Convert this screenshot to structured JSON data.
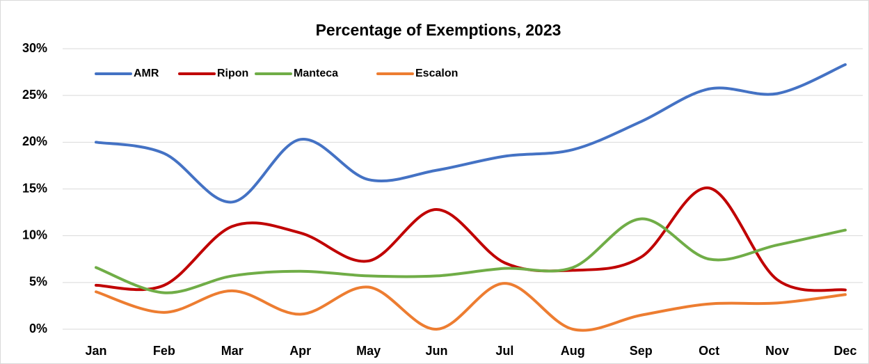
{
  "chart_data": {
    "type": "line",
    "title": "Percentage of Exemptions, 2023",
    "categories": [
      "Jan",
      "Feb",
      "Mar",
      "Apr",
      "May",
      "Jun",
      "Jul",
      "Aug",
      "Sep",
      "Oct",
      "Nov",
      "Dec"
    ],
    "series": [
      {
        "name": "AMR",
        "color": "#4472c4",
        "values": [
          20,
          18.8,
          13.6,
          20.3,
          16,
          17,
          18.5,
          19.2,
          22.2,
          25.7,
          25.2,
          28.3
        ]
      },
      {
        "name": "Ripon",
        "color": "#c00000",
        "values": [
          4.7,
          4.7,
          11,
          10.3,
          7.3,
          12.8,
          7.1,
          6.3,
          7.7,
          15.1,
          5.3,
          4.2
        ]
      },
      {
        "name": "Manteca",
        "color": "#70ad47",
        "values": [
          6.6,
          3.9,
          5.7,
          6.2,
          5.7,
          5.7,
          6.5,
          6.6,
          11.8,
          7.5,
          9,
          10.6
        ]
      },
      {
        "name": "Escalon",
        "color": "#ed7d31",
        "values": [
          4,
          1.8,
          4.1,
          1.6,
          4.5,
          0,
          4.9,
          0,
          1.5,
          2.7,
          2.8,
          3.7
        ]
      }
    ],
    "ylim": [
      0,
      30
    ],
    "yticks": [
      {
        "value": 0,
        "label": "0%"
      },
      {
        "value": 5,
        "label": "5%"
      },
      {
        "value": 10,
        "label": "10%"
      },
      {
        "value": 15,
        "label": "15%"
      },
      {
        "value": 20,
        "label": "20%"
      },
      {
        "value": 25,
        "label": "25%"
      },
      {
        "value": 30,
        "label": "30%"
      }
    ],
    "grid": true,
    "smooth": true,
    "legend": "top-left"
  }
}
